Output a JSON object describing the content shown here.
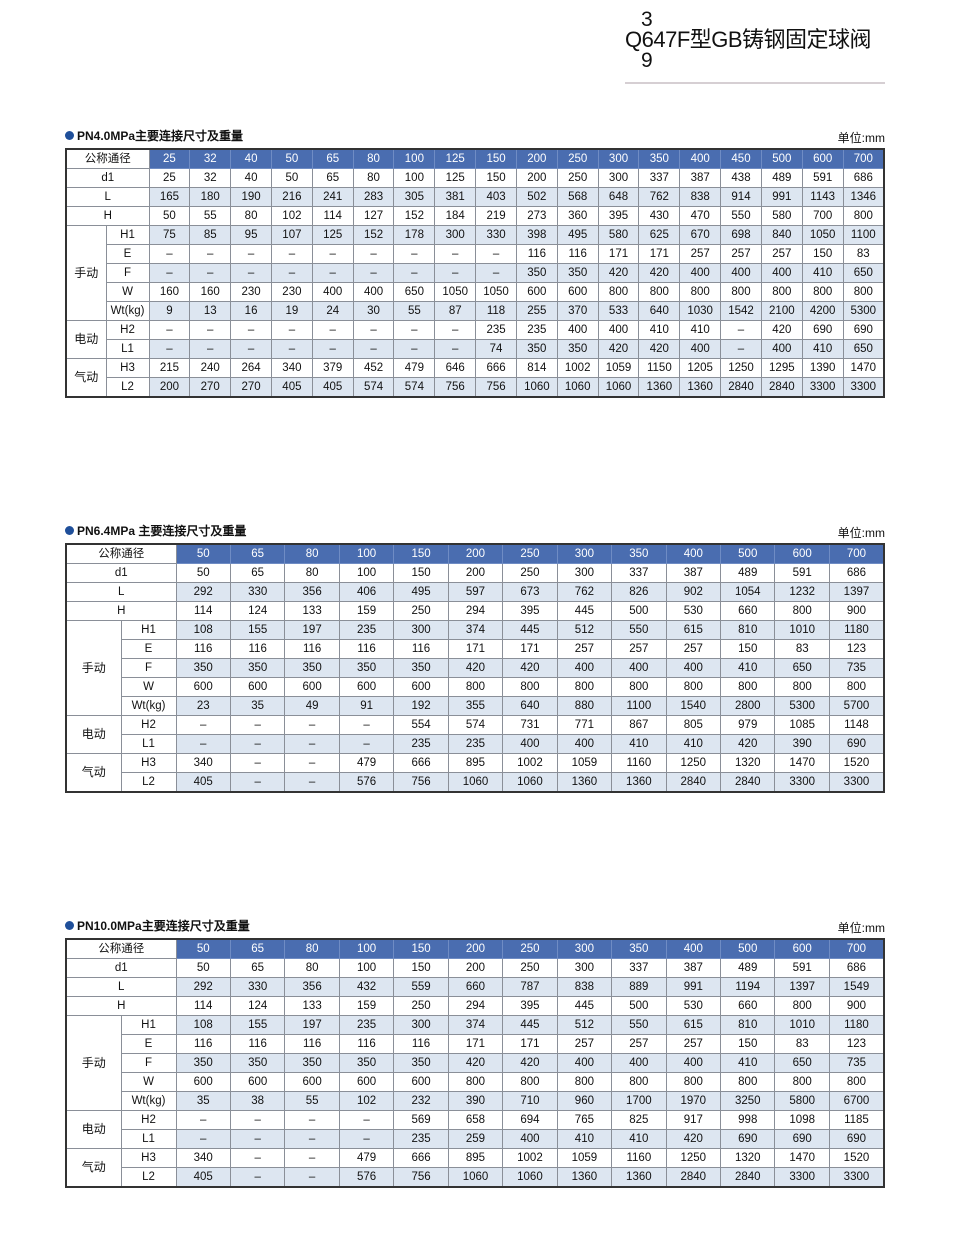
{
  "header": {
    "page_number_top": "3",
    "title": "Q647F型GB铸钢固定球阀",
    "page_number_bottom": "9"
  },
  "dash": "–",
  "groups": {
    "manual": "手动",
    "electric": "电动",
    "pneumatic": "气动"
  },
  "tables": [
    {
      "title": "PN4.0MPa主要连接尺寸及重量",
      "unit": "单位:mm",
      "header_label": "公称通径",
      "sizes": [
        "25",
        "32",
        "40",
        "50",
        "65",
        "80",
        "100",
        "125",
        "150",
        "200",
        "250",
        "300",
        "350",
        "400",
        "450",
        "500",
        "600",
        "700"
      ],
      "rows": [
        {
          "label": "d1",
          "group": "",
          "values": [
            "25",
            "32",
            "40",
            "50",
            "65",
            "80",
            "100",
            "125",
            "150",
            "200",
            "250",
            "300",
            "337",
            "387",
            "438",
            "489",
            "591",
            "686"
          ]
        },
        {
          "label": "L",
          "group": "",
          "values": [
            "165",
            "180",
            "190",
            "216",
            "241",
            "283",
            "305",
            "381",
            "403",
            "502",
            "568",
            "648",
            "762",
            "838",
            "914",
            "991",
            "1143",
            "1346"
          ]
        },
        {
          "label": "H",
          "group": "",
          "values": [
            "50",
            "55",
            "80",
            "102",
            "114",
            "127",
            "152",
            "184",
            "219",
            "273",
            "360",
            "395",
            "430",
            "470",
            "550",
            "580",
            "700",
            "800"
          ]
        },
        {
          "label": "H1",
          "group": "manual",
          "values": [
            "75",
            "85",
            "95",
            "107",
            "125",
            "152",
            "178",
            "300",
            "330",
            "398",
            "495",
            "580",
            "625",
            "670",
            "698",
            "840",
            "1050",
            "1100"
          ]
        },
        {
          "label": "E",
          "group": "manual",
          "values": [
            "–",
            "–",
            "–",
            "–",
            "–",
            "–",
            "–",
            "–",
            "–",
            "116",
            "116",
            "171",
            "171",
            "257",
            "257",
            "257",
            "150",
            "83"
          ]
        },
        {
          "label": "F",
          "group": "manual",
          "values": [
            "–",
            "–",
            "–",
            "–",
            "–",
            "–",
            "–",
            "–",
            "–",
            "350",
            "350",
            "420",
            "420",
            "400",
            "400",
            "400",
            "410",
            "650"
          ]
        },
        {
          "label": "W",
          "group": "manual",
          "values": [
            "160",
            "160",
            "230",
            "230",
            "400",
            "400",
            "650",
            "1050",
            "1050",
            "600",
            "600",
            "800",
            "800",
            "800",
            "800",
            "800",
            "800",
            "800"
          ]
        },
        {
          "label": "Wt(kg)",
          "group": "manual",
          "values": [
            "9",
            "13",
            "16",
            "19",
            "24",
            "30",
            "55",
            "87",
            "118",
            "255",
            "370",
            "533",
            "640",
            "1030",
            "1542",
            "2100",
            "4200",
            "5300"
          ]
        },
        {
          "label": "H2",
          "group": "electric",
          "values": [
            "–",
            "–",
            "–",
            "–",
            "–",
            "–",
            "–",
            "–",
            "235",
            "235",
            "400",
            "400",
            "410",
            "410",
            "–",
            "420",
            "690",
            "690"
          ]
        },
        {
          "label": "L1",
          "group": "electric",
          "values": [
            "–",
            "–",
            "–",
            "–",
            "–",
            "–",
            "–",
            "–",
            "74",
            "350",
            "350",
            "420",
            "420",
            "400",
            "–",
            "400",
            "410",
            "650"
          ]
        },
        {
          "label": "H3",
          "group": "pneumatic",
          "values": [
            "215",
            "240",
            "264",
            "340",
            "379",
            "452",
            "479",
            "646",
            "666",
            "814",
            "1002",
            "1059",
            "1150",
            "1205",
            "1250",
            "1295",
            "1390",
            "1470"
          ]
        },
        {
          "label": "L2",
          "group": "pneumatic",
          "values": [
            "200",
            "270",
            "270",
            "405",
            "405",
            "574",
            "574",
            "756",
            "756",
            "1060",
            "1060",
            "1060",
            "1360",
            "1360",
            "2840",
            "2840",
            "3300",
            "3300"
          ]
        }
      ]
    },
    {
      "title": "PN6.4MPa 主要连接尺寸及重量",
      "unit": "单位:mm",
      "header_label": "公称通径",
      "sizes": [
        "50",
        "65",
        "80",
        "100",
        "150",
        "200",
        "250",
        "300",
        "350",
        "400",
        "500",
        "600",
        "700"
      ],
      "rows": [
        {
          "label": "d1",
          "group": "",
          "values": [
            "50",
            "65",
            "80",
            "100",
            "150",
            "200",
            "250",
            "300",
            "337",
            "387",
            "489",
            "591",
            "686"
          ]
        },
        {
          "label": "L",
          "group": "",
          "values": [
            "292",
            "330",
            "356",
            "406",
            "495",
            "597",
            "673",
            "762",
            "826",
            "902",
            "1054",
            "1232",
            "1397"
          ]
        },
        {
          "label": "H",
          "group": "",
          "values": [
            "114",
            "124",
            "133",
            "159",
            "250",
            "294",
            "395",
            "445",
            "500",
            "530",
            "660",
            "800",
            "900"
          ]
        },
        {
          "label": "H1",
          "group": "manual",
          "values": [
            "108",
            "155",
            "197",
            "235",
            "300",
            "374",
            "445",
            "512",
            "550",
            "615",
            "810",
            "1010",
            "1180"
          ]
        },
        {
          "label": "E",
          "group": "manual",
          "values": [
            "116",
            "116",
            "116",
            "116",
            "116",
            "171",
            "171",
            "257",
            "257",
            "257",
            "150",
            "83",
            "123"
          ]
        },
        {
          "label": "F",
          "group": "manual",
          "values": [
            "350",
            "350",
            "350",
            "350",
            "350",
            "420",
            "420",
            "400",
            "400",
            "400",
            "410",
            "650",
            "735"
          ]
        },
        {
          "label": "W",
          "group": "manual",
          "values": [
            "600",
            "600",
            "600",
            "600",
            "600",
            "800",
            "800",
            "800",
            "800",
            "800",
            "800",
            "800",
            "800"
          ]
        },
        {
          "label": "Wt(kg)",
          "group": "manual",
          "values": [
            "23",
            "35",
            "49",
            "91",
            "192",
            "355",
            "640",
            "880",
            "1100",
            "1540",
            "2800",
            "5300",
            "5700"
          ]
        },
        {
          "label": "H2",
          "group": "electric",
          "values": [
            "–",
            "–",
            "–",
            "–",
            "554",
            "574",
            "731",
            "771",
            "867",
            "805",
            "979",
            "1085",
            "1148"
          ]
        },
        {
          "label": "L1",
          "group": "electric",
          "values": [
            "–",
            "–",
            "–",
            "–",
            "235",
            "235",
            "400",
            "400",
            "410",
            "410",
            "420",
            "390",
            "690"
          ]
        },
        {
          "label": "H3",
          "group": "pneumatic",
          "values": [
            "340",
            "–",
            "–",
            "479",
            "666",
            "895",
            "1002",
            "1059",
            "1160",
            "1250",
            "1320",
            "1470",
            "1520"
          ]
        },
        {
          "label": "L2",
          "group": "pneumatic",
          "values": [
            "405",
            "–",
            "–",
            "576",
            "756",
            "1060",
            "1060",
            "1360",
            "1360",
            "2840",
            "2840",
            "3300",
            "3300"
          ]
        }
      ]
    },
    {
      "title": "PN10.0MPa主要连接尺寸及重量",
      "unit": "单位:mm",
      "header_label": "公称通径",
      "sizes": [
        "50",
        "65",
        "80",
        "100",
        "150",
        "200",
        "250",
        "300",
        "350",
        "400",
        "500",
        "600",
        "700"
      ],
      "rows": [
        {
          "label": "d1",
          "group": "",
          "values": [
            "50",
            "65",
            "80",
            "100",
            "150",
            "200",
            "250",
            "300",
            "337",
            "387",
            "489",
            "591",
            "686"
          ]
        },
        {
          "label": "L",
          "group": "",
          "values": [
            "292",
            "330",
            "356",
            "432",
            "559",
            "660",
            "787",
            "838",
            "889",
            "991",
            "1194",
            "1397",
            "1549"
          ]
        },
        {
          "label": "H",
          "group": "",
          "values": [
            "114",
            "124",
            "133",
            "159",
            "250",
            "294",
            "395",
            "445",
            "500",
            "530",
            "660",
            "800",
            "900"
          ]
        },
        {
          "label": "H1",
          "group": "manual",
          "values": [
            "108",
            "155",
            "197",
            "235",
            "300",
            "374",
            "445",
            "512",
            "550",
            "615",
            "810",
            "1010",
            "1180"
          ]
        },
        {
          "label": "E",
          "group": "manual",
          "values": [
            "116",
            "116",
            "116",
            "116",
            "116",
            "171",
            "171",
            "257",
            "257",
            "257",
            "150",
            "83",
            "123"
          ]
        },
        {
          "label": "F",
          "group": "manual",
          "values": [
            "350",
            "350",
            "350",
            "350",
            "350",
            "420",
            "420",
            "400",
            "400",
            "400",
            "410",
            "650",
            "735"
          ]
        },
        {
          "label": "W",
          "group": "manual",
          "values": [
            "600",
            "600",
            "600",
            "600",
            "600",
            "800",
            "800",
            "800",
            "800",
            "800",
            "800",
            "800",
            "800"
          ]
        },
        {
          "label": "Wt(kg)",
          "group": "manual",
          "values": [
            "35",
            "38",
            "55",
            "102",
            "232",
            "390",
            "710",
            "960",
            "1700",
            "1970",
            "3250",
            "5800",
            "6700"
          ]
        },
        {
          "label": "H2",
          "group": "electric",
          "values": [
            "–",
            "–",
            "–",
            "–",
            "569",
            "658",
            "694",
            "765",
            "825",
            "917",
            "998",
            "1098",
            "1185"
          ]
        },
        {
          "label": "L1",
          "group": "electric",
          "values": [
            "–",
            "–",
            "–",
            "–",
            "235",
            "259",
            "400",
            "410",
            "410",
            "420",
            "690",
            "690",
            "690"
          ]
        },
        {
          "label": "H3",
          "group": "pneumatic",
          "values": [
            "340",
            "–",
            "–",
            "479",
            "666",
            "895",
            "1002",
            "1059",
            "1160",
            "1250",
            "1320",
            "1470",
            "1520"
          ]
        },
        {
          "label": "L2",
          "group": "pneumatic",
          "values": [
            "405",
            "–",
            "–",
            "576",
            "756",
            "1060",
            "1060",
            "1360",
            "1360",
            "2840",
            "2840",
            "3300",
            "3300"
          ]
        }
      ]
    }
  ]
}
